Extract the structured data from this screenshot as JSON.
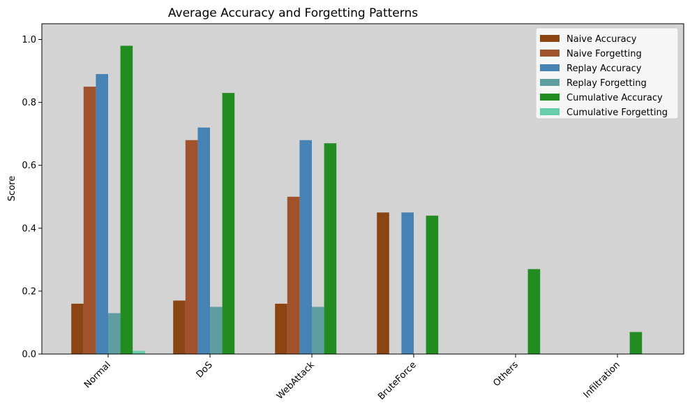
{
  "chart_data": {
    "type": "bar",
    "title": "Average Accuracy and Forgetting Patterns",
    "xlabel": "",
    "ylabel": "Score",
    "ylim": [
      0,
      1.05
    ],
    "yticks": [
      0.0,
      0.2,
      0.4,
      0.6,
      0.8,
      1.0
    ],
    "ytick_labels": [
      "0.0",
      "0.2",
      "0.4",
      "0.6",
      "0.8",
      "1.0"
    ],
    "categories": [
      "Normal",
      "DoS",
      "WebAttack",
      "BruteForce",
      "Others",
      "Infiltration"
    ],
    "grid": false,
    "plot_background": "#d3d3d3",
    "legend_position": "top-right",
    "series": [
      {
        "name": "Naive Accuracy",
        "color": "#8b4513",
        "values": [
          0.16,
          0.17,
          0.16,
          0.45,
          0.0,
          0.0
        ]
      },
      {
        "name": "Naive Forgetting",
        "color": "#a0522d",
        "values": [
          0.85,
          0.68,
          0.5,
          0.0,
          0.0,
          0.0
        ]
      },
      {
        "name": "Replay Accuracy",
        "color": "#4682b4",
        "values": [
          0.89,
          0.72,
          0.68,
          0.45,
          0.0,
          0.0
        ]
      },
      {
        "name": "Replay Forgetting",
        "color": "#5f9ea0",
        "values": [
          0.13,
          0.15,
          0.15,
          0.0,
          0.0,
          0.0
        ]
      },
      {
        "name": "Cumulative Accuracy",
        "color": "#228b22",
        "values": [
          0.98,
          0.83,
          0.67,
          0.44,
          0.27,
          0.07
        ]
      },
      {
        "name": "Cumulative Forgetting",
        "color": "#66cdaa",
        "values": [
          0.01,
          0.0,
          0.0,
          0.0,
          0.0,
          0.0
        ]
      }
    ]
  }
}
